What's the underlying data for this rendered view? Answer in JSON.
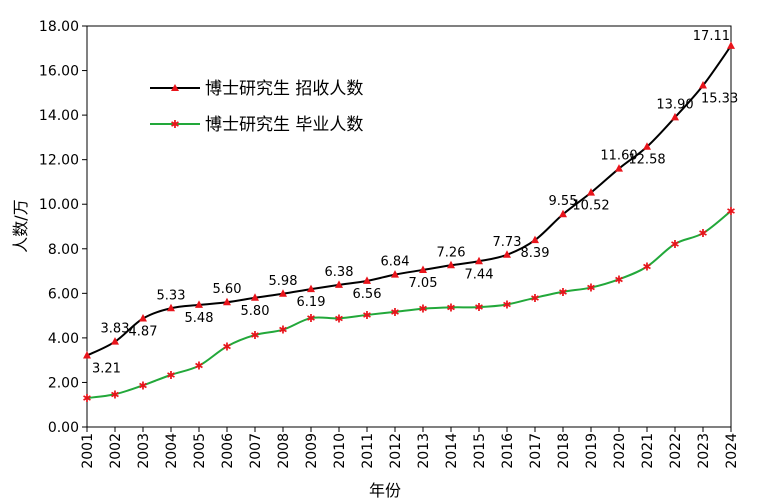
{
  "chart_data": {
    "type": "line",
    "xlabel": "年份",
    "ylabel": "人数/万",
    "ylim": [
      0,
      18
    ],
    "ytick_step": 2,
    "grid": false,
    "legend_position": "top-left",
    "categories": [
      "2001",
      "2002",
      "2003",
      "2004",
      "2005",
      "2006",
      "2007",
      "2008",
      "2009",
      "2010",
      "2011",
      "2012",
      "2013",
      "2014",
      "2015",
      "2016",
      "2017",
      "2018",
      "2019",
      "2020",
      "2021",
      "2022",
      "2023",
      "2024"
    ],
    "series": [
      {
        "name": "博士研究生 招收人数",
        "color": "#000000",
        "marker_color": "#e8141b",
        "marker": "triangle",
        "values": [
          3.21,
          3.83,
          4.87,
          5.33,
          5.48,
          5.6,
          5.8,
          5.98,
          6.19,
          6.38,
          6.56,
          6.84,
          7.05,
          7.26,
          7.44,
          7.73,
          8.39,
          9.55,
          10.52,
          11.6,
          12.58,
          13.9,
          15.33,
          17.11
        ],
        "labels": [
          "3.21",
          "3.83",
          "4.87",
          "5.33",
          "5.48",
          "5.60",
          "5.80",
          "5.98",
          "6.19",
          "6.38",
          "6.56",
          "6.84",
          "7.05",
          "7.26",
          "7.44",
          "7.73",
          "8.39",
          "9.55",
          "10.52",
          "11.60",
          "12.58",
          "13.90",
          "15.33",
          "17.11"
        ]
      },
      {
        "name": "博士研究生 毕业人数",
        "color": "#22a83a",
        "marker_color": "#e8141b",
        "marker": "star",
        "values": [
          1.3,
          1.47,
          1.87,
          2.34,
          2.75,
          3.62,
          4.13,
          4.37,
          4.89,
          4.88,
          5.03,
          5.17,
          5.31,
          5.37,
          5.38,
          5.5,
          5.8,
          6.07,
          6.26,
          6.63,
          7.2,
          8.22,
          8.7,
          9.7
        ]
      }
    ]
  }
}
